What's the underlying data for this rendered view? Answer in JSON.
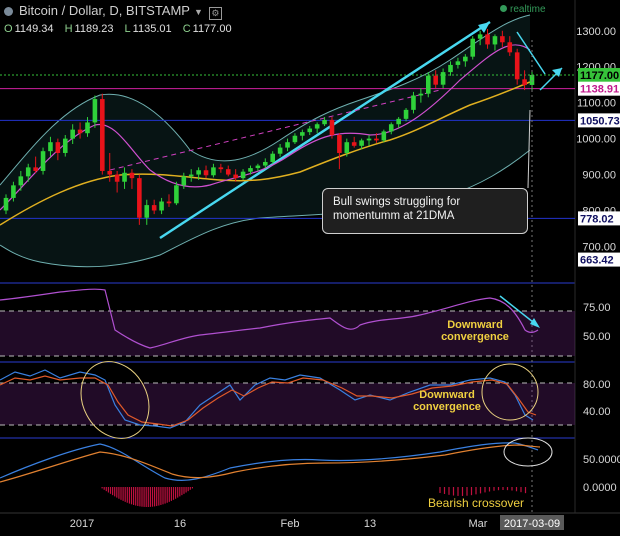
{
  "header": {
    "title": "Bitcoin / Dollar, D, BITSTAMP",
    "ohlc": [
      {
        "label": "O",
        "value": "1149.34"
      },
      {
        "label": "H",
        "value": "1189.23"
      },
      {
        "label": "L",
        "value": "1135.01"
      },
      {
        "label": "C",
        "value": "1177.00"
      }
    ],
    "realtime": "realtime"
  },
  "annotations": {
    "callout": "Bull swings struggling for momentumm at 21DMA",
    "rsi_note": "Downward convergence",
    "stoch_note": "Downward convergence",
    "macd_note": "Bearish crossover"
  },
  "price_axis": {
    "ticks": [
      "1300.00",
      "1200.00",
      "1100.00",
      "1000.00",
      "900.00",
      "800.00",
      "700.00"
    ],
    "badges": [
      {
        "text": "1177.00",
        "color": "#36c23a",
        "text_color": "#000000"
      },
      {
        "text": "1138.91",
        "color": "#ffffff",
        "text_color": "#c0188c"
      },
      {
        "text": "1050.73",
        "color": "#ffffff",
        "text_color": "#101060"
      },
      {
        "text": "778.02",
        "color": "#ffffff",
        "text_color": "#101060"
      },
      {
        "text": "663.42",
        "color": "#ffffff",
        "text_color": "#101060"
      }
    ]
  },
  "rsi_axis": {
    "ticks": [
      "75.00",
      "50.00"
    ]
  },
  "stoch_axis": {
    "ticks": [
      "80.00",
      "40.00"
    ]
  },
  "macd_axis": {
    "ticks": [
      "50.0000",
      "0.0000"
    ]
  },
  "time_axis": {
    "labels": [
      "2017",
      "16",
      "Feb",
      "13",
      "Mar"
    ],
    "current": "2017-03-09"
  },
  "chart_data": {
    "type": "candlestick",
    "ylim": [
      640,
      1330
    ],
    "horizontal_levels": [
      {
        "value": 1177.0,
        "color": "#36c23a",
        "style": "dotted"
      },
      {
        "value": 1138.91,
        "color": "#d020a0",
        "style": "solid"
      },
      {
        "value": 1050.73,
        "color": "#2233cc",
        "style": "solid"
      },
      {
        "value": 778.02,
        "color": "#2233cc",
        "style": "solid"
      }
    ],
    "candles": [
      {
        "o": 800,
        "h": 845,
        "l": 790,
        "c": 835
      },
      {
        "o": 835,
        "h": 880,
        "l": 825,
        "c": 870
      },
      {
        "o": 870,
        "h": 910,
        "l": 855,
        "c": 895
      },
      {
        "o": 895,
        "h": 930,
        "l": 880,
        "c": 920
      },
      {
        "o": 920,
        "h": 950,
        "l": 905,
        "c": 910
      },
      {
        "o": 910,
        "h": 975,
        "l": 900,
        "c": 965
      },
      {
        "o": 965,
        "h": 1005,
        "l": 950,
        "c": 990
      },
      {
        "o": 990,
        "h": 1000,
        "l": 940,
        "c": 960
      },
      {
        "o": 960,
        "h": 1010,
        "l": 950,
        "c": 1000
      },
      {
        "o": 1000,
        "h": 1040,
        "l": 985,
        "c": 1025
      },
      {
        "o": 1025,
        "h": 1045,
        "l": 1000,
        "c": 1015
      },
      {
        "o": 1015,
        "h": 1060,
        "l": 1005,
        "c": 1045
      },
      {
        "o": 1045,
        "h": 1120,
        "l": 1030,
        "c": 1110
      },
      {
        "o": 1110,
        "h": 1125,
        "l": 900,
        "c": 910
      },
      {
        "o": 910,
        "h": 960,
        "l": 880,
        "c": 900
      },
      {
        "o": 900,
        "h": 910,
        "l": 850,
        "c": 880
      },
      {
        "o": 880,
        "h": 920,
        "l": 860,
        "c": 905
      },
      {
        "o": 905,
        "h": 915,
        "l": 860,
        "c": 890
      },
      {
        "o": 890,
        "h": 900,
        "l": 760,
        "c": 780
      },
      {
        "o": 780,
        "h": 830,
        "l": 760,
        "c": 815
      },
      {
        "o": 815,
        "h": 830,
        "l": 790,
        "c": 800
      },
      {
        "o": 800,
        "h": 835,
        "l": 790,
        "c": 825
      },
      {
        "o": 825,
        "h": 845,
        "l": 810,
        "c": 820
      },
      {
        "o": 820,
        "h": 880,
        "l": 815,
        "c": 870
      },
      {
        "o": 870,
        "h": 905,
        "l": 860,
        "c": 895
      },
      {
        "o": 895,
        "h": 915,
        "l": 880,
        "c": 900
      },
      {
        "o": 900,
        "h": 920,
        "l": 885,
        "c": 912
      },
      {
        "o": 912,
        "h": 925,
        "l": 890,
        "c": 898
      },
      {
        "o": 898,
        "h": 930,
        "l": 892,
        "c": 920
      },
      {
        "o": 920,
        "h": 930,
        "l": 905,
        "c": 915
      },
      {
        "o": 915,
        "h": 925,
        "l": 895,
        "c": 900
      },
      {
        "o": 900,
        "h": 915,
        "l": 880,
        "c": 890
      },
      {
        "o": 890,
        "h": 915,
        "l": 885,
        "c": 908
      },
      {
        "o": 908,
        "h": 925,
        "l": 900,
        "c": 918
      },
      {
        "o": 918,
        "h": 930,
        "l": 910,
        "c": 925
      },
      {
        "o": 925,
        "h": 945,
        "l": 918,
        "c": 935
      },
      {
        "o": 935,
        "h": 965,
        "l": 930,
        "c": 958
      },
      {
        "o": 958,
        "h": 985,
        "l": 950,
        "c": 975
      },
      {
        "o": 975,
        "h": 1000,
        "l": 965,
        "c": 990
      },
      {
        "o": 990,
        "h": 1015,
        "l": 985,
        "c": 1008
      },
      {
        "o": 1008,
        "h": 1025,
        "l": 995,
        "c": 1018
      },
      {
        "o": 1018,
        "h": 1035,
        "l": 1010,
        "c": 1028
      },
      {
        "o": 1028,
        "h": 1045,
        "l": 1015,
        "c": 1040
      },
      {
        "o": 1040,
        "h": 1060,
        "l": 1035,
        "c": 1052
      },
      {
        "o": 1052,
        "h": 1060,
        "l": 1000,
        "c": 1010
      },
      {
        "o": 1010,
        "h": 1015,
        "l": 915,
        "c": 960
      },
      {
        "o": 960,
        "h": 1000,
        "l": 950,
        "c": 990
      },
      {
        "o": 990,
        "h": 1005,
        "l": 975,
        "c": 980
      },
      {
        "o": 980,
        "h": 1000,
        "l": 970,
        "c": 995
      },
      {
        "o": 995,
        "h": 1010,
        "l": 980,
        "c": 1000
      },
      {
        "o": 1000,
        "h": 1015,
        "l": 988,
        "c": 995
      },
      {
        "o": 995,
        "h": 1025,
        "l": 990,
        "c": 1020
      },
      {
        "o": 1020,
        "h": 1045,
        "l": 1012,
        "c": 1040
      },
      {
        "o": 1040,
        "h": 1060,
        "l": 1030,
        "c": 1055
      },
      {
        "o": 1055,
        "h": 1085,
        "l": 1048,
        "c": 1080
      },
      {
        "o": 1080,
        "h": 1130,
        "l": 1070,
        "c": 1120
      },
      {
        "o": 1120,
        "h": 1140,
        "l": 1100,
        "c": 1125
      },
      {
        "o": 1125,
        "h": 1185,
        "l": 1115,
        "c": 1175
      },
      {
        "o": 1175,
        "h": 1190,
        "l": 1140,
        "c": 1150
      },
      {
        "o": 1150,
        "h": 1195,
        "l": 1140,
        "c": 1185
      },
      {
        "o": 1185,
        "h": 1215,
        "l": 1175,
        "c": 1205
      },
      {
        "o": 1205,
        "h": 1225,
        "l": 1195,
        "c": 1215
      },
      {
        "o": 1215,
        "h": 1235,
        "l": 1200,
        "c": 1228
      },
      {
        "o": 1228,
        "h": 1285,
        "l": 1220,
        "c": 1278
      },
      {
        "o": 1278,
        "h": 1300,
        "l": 1260,
        "c": 1290
      },
      {
        "o": 1290,
        "h": 1305,
        "l": 1250,
        "c": 1262
      },
      {
        "o": 1262,
        "h": 1290,
        "l": 1245,
        "c": 1285
      },
      {
        "o": 1285,
        "h": 1300,
        "l": 1255,
        "c": 1268
      },
      {
        "o": 1268,
        "h": 1285,
        "l": 1230,
        "c": 1240
      },
      {
        "o": 1240,
        "h": 1250,
        "l": 1150,
        "c": 1165
      },
      {
        "o": 1165,
        "h": 1190,
        "l": 1135,
        "c": 1149
      },
      {
        "o": 1149.34,
        "h": 1189.23,
        "l": 1135.01,
        "c": 1177.0
      }
    ]
  }
}
